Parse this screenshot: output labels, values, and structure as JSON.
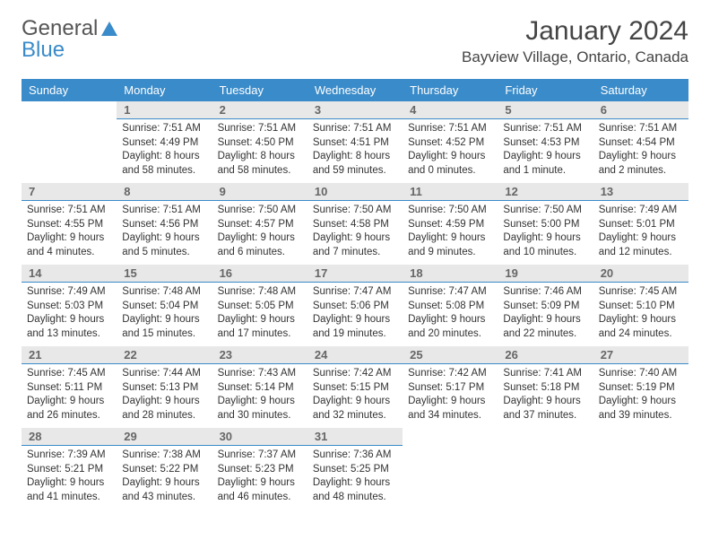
{
  "brand": {
    "part1": "General",
    "part2": "Blue"
  },
  "title": "January 2024",
  "location": "Bayview Village, Ontario, Canada",
  "colors": {
    "header_bg": "#3a8bc9",
    "header_text": "#ffffff",
    "daynum_bg": "#e8e8e8",
    "daynum_text": "#666666",
    "daynum_border": "#3a8bc9",
    "body_text": "#333333",
    "page_bg": "#ffffff"
  },
  "typography": {
    "title_fontsize": 30,
    "location_fontsize": 17,
    "weekday_fontsize": 13,
    "daynum_fontsize": 13,
    "cell_fontsize": 11.5
  },
  "weekdays": [
    "Sunday",
    "Monday",
    "Tuesday",
    "Wednesday",
    "Thursday",
    "Friday",
    "Saturday"
  ],
  "layout": {
    "columns": 7,
    "rows": 5,
    "first_weekday_index": 1
  },
  "days": [
    {
      "n": 1,
      "sunrise": "7:51 AM",
      "sunset": "4:49 PM",
      "daylight": "8 hours and 58 minutes."
    },
    {
      "n": 2,
      "sunrise": "7:51 AM",
      "sunset": "4:50 PM",
      "daylight": "8 hours and 58 minutes."
    },
    {
      "n": 3,
      "sunrise": "7:51 AM",
      "sunset": "4:51 PM",
      "daylight": "8 hours and 59 minutes."
    },
    {
      "n": 4,
      "sunrise": "7:51 AM",
      "sunset": "4:52 PM",
      "daylight": "9 hours and 0 minutes."
    },
    {
      "n": 5,
      "sunrise": "7:51 AM",
      "sunset": "4:53 PM",
      "daylight": "9 hours and 1 minute."
    },
    {
      "n": 6,
      "sunrise": "7:51 AM",
      "sunset": "4:54 PM",
      "daylight": "9 hours and 2 minutes."
    },
    {
      "n": 7,
      "sunrise": "7:51 AM",
      "sunset": "4:55 PM",
      "daylight": "9 hours and 4 minutes."
    },
    {
      "n": 8,
      "sunrise": "7:51 AM",
      "sunset": "4:56 PM",
      "daylight": "9 hours and 5 minutes."
    },
    {
      "n": 9,
      "sunrise": "7:50 AM",
      "sunset": "4:57 PM",
      "daylight": "9 hours and 6 minutes."
    },
    {
      "n": 10,
      "sunrise": "7:50 AM",
      "sunset": "4:58 PM",
      "daylight": "9 hours and 7 minutes."
    },
    {
      "n": 11,
      "sunrise": "7:50 AM",
      "sunset": "4:59 PM",
      "daylight": "9 hours and 9 minutes."
    },
    {
      "n": 12,
      "sunrise": "7:50 AM",
      "sunset": "5:00 PM",
      "daylight": "9 hours and 10 minutes."
    },
    {
      "n": 13,
      "sunrise": "7:49 AM",
      "sunset": "5:01 PM",
      "daylight": "9 hours and 12 minutes."
    },
    {
      "n": 14,
      "sunrise": "7:49 AM",
      "sunset": "5:03 PM",
      "daylight": "9 hours and 13 minutes."
    },
    {
      "n": 15,
      "sunrise": "7:48 AM",
      "sunset": "5:04 PM",
      "daylight": "9 hours and 15 minutes."
    },
    {
      "n": 16,
      "sunrise": "7:48 AM",
      "sunset": "5:05 PM",
      "daylight": "9 hours and 17 minutes."
    },
    {
      "n": 17,
      "sunrise": "7:47 AM",
      "sunset": "5:06 PM",
      "daylight": "9 hours and 19 minutes."
    },
    {
      "n": 18,
      "sunrise": "7:47 AM",
      "sunset": "5:08 PM",
      "daylight": "9 hours and 20 minutes."
    },
    {
      "n": 19,
      "sunrise": "7:46 AM",
      "sunset": "5:09 PM",
      "daylight": "9 hours and 22 minutes."
    },
    {
      "n": 20,
      "sunrise": "7:45 AM",
      "sunset": "5:10 PM",
      "daylight": "9 hours and 24 minutes."
    },
    {
      "n": 21,
      "sunrise": "7:45 AM",
      "sunset": "5:11 PM",
      "daylight": "9 hours and 26 minutes."
    },
    {
      "n": 22,
      "sunrise": "7:44 AM",
      "sunset": "5:13 PM",
      "daylight": "9 hours and 28 minutes."
    },
    {
      "n": 23,
      "sunrise": "7:43 AM",
      "sunset": "5:14 PM",
      "daylight": "9 hours and 30 minutes."
    },
    {
      "n": 24,
      "sunrise": "7:42 AM",
      "sunset": "5:15 PM",
      "daylight": "9 hours and 32 minutes."
    },
    {
      "n": 25,
      "sunrise": "7:42 AM",
      "sunset": "5:17 PM",
      "daylight": "9 hours and 34 minutes."
    },
    {
      "n": 26,
      "sunrise": "7:41 AM",
      "sunset": "5:18 PM",
      "daylight": "9 hours and 37 minutes."
    },
    {
      "n": 27,
      "sunrise": "7:40 AM",
      "sunset": "5:19 PM",
      "daylight": "9 hours and 39 minutes."
    },
    {
      "n": 28,
      "sunrise": "7:39 AM",
      "sunset": "5:21 PM",
      "daylight": "9 hours and 41 minutes."
    },
    {
      "n": 29,
      "sunrise": "7:38 AM",
      "sunset": "5:22 PM",
      "daylight": "9 hours and 43 minutes."
    },
    {
      "n": 30,
      "sunrise": "7:37 AM",
      "sunset": "5:23 PM",
      "daylight": "9 hours and 46 minutes."
    },
    {
      "n": 31,
      "sunrise": "7:36 AM",
      "sunset": "5:25 PM",
      "daylight": "9 hours and 48 minutes."
    }
  ],
  "labels": {
    "sunrise": "Sunrise:",
    "sunset": "Sunset:",
    "daylight": "Daylight:"
  }
}
